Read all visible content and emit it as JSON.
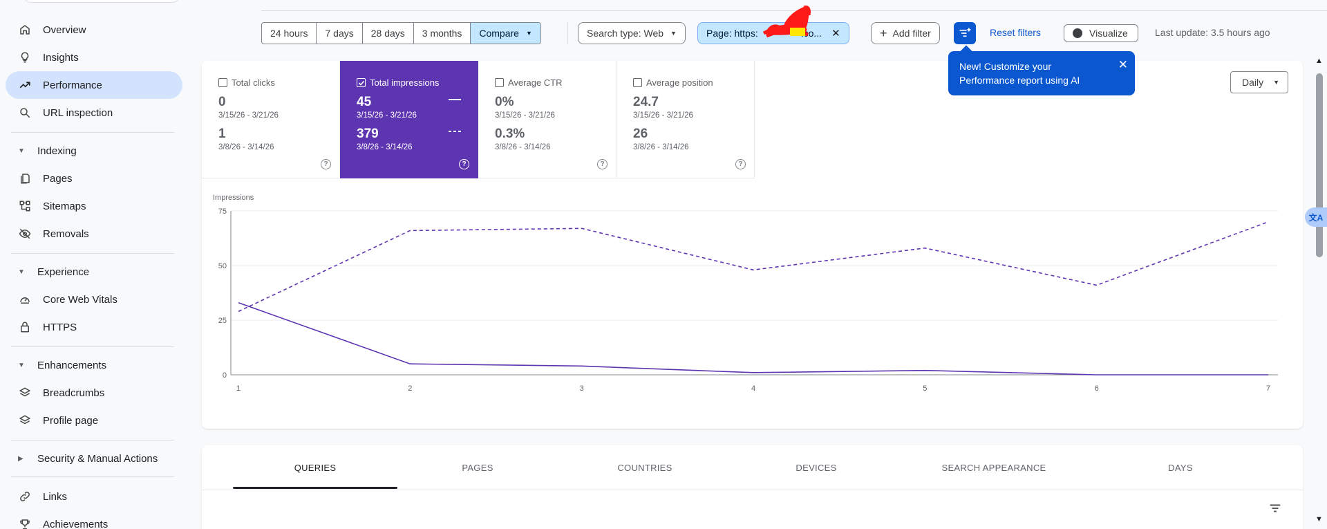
{
  "sidebar": {
    "items": {
      "overview": "Overview",
      "insights": "Insights",
      "performance": "Performance",
      "url_inspection": "URL inspection",
      "pages": "Pages",
      "sitemaps": "Sitemaps",
      "removals": "Removals",
      "core_web_vitals": "Core Web Vitals",
      "https": "HTTPS",
      "breadcrumbs": "Breadcrumbs",
      "profile_page": "Profile page",
      "links": "Links",
      "achievements": "Achievements"
    },
    "sections": {
      "indexing": "Indexing",
      "experience": "Experience",
      "enhancements": "Enhancements",
      "security": "Security & Manual Actions"
    },
    "active_item": "Performance"
  },
  "toolbar": {
    "date_ranges": [
      "24 hours",
      "7 days",
      "28 days",
      "3 months"
    ],
    "compare_label": "Compare",
    "search_type_label": "Search type: Web",
    "page_filter_label": "Page: https:",
    "page_filter_suffix": ".co...",
    "add_filter_label": "Add filter",
    "reset_filters_label": "Reset filters",
    "visualize_label": "Visualize",
    "last_update": "Last update: 3.5 hours ago"
  },
  "tooltip": {
    "text": "New! Customize your Performance report using AI"
  },
  "metrics": [
    {
      "label": "Total clicks",
      "value_current": "0",
      "range_current": "3/15/26 - 3/21/26",
      "value_previous": "1",
      "range_previous": "3/8/26 - 3/14/26",
      "checked": false
    },
    {
      "label": "Total impressions",
      "value_current": "45",
      "range_current": "3/15/26 - 3/21/26",
      "value_previous": "379",
      "range_previous": "3/8/26 - 3/14/26",
      "checked": true
    },
    {
      "label": "Average CTR",
      "value_current": "0%",
      "range_current": "3/15/26 - 3/21/26",
      "value_previous": "0.3%",
      "range_previous": "3/8/26 - 3/14/26",
      "checked": false
    },
    {
      "label": "Average position",
      "value_current": "24.7",
      "range_current": "3/15/26 - 3/21/26",
      "value_previous": "26",
      "range_previous": "3/8/26 - 3/14/26",
      "checked": false
    }
  ],
  "granularity_label": "Daily",
  "tabs": [
    "QUERIES",
    "PAGES",
    "COUNTRIES",
    "DEVICES",
    "SEARCH APPEARANCE",
    "DAYS"
  ],
  "active_tab": "QUERIES",
  "colors": {
    "accent": "#5e35b1",
    "primary_blue": "#0b57d0",
    "chip_blue": "#c2e7ff",
    "active_nav": "#d3e3fd"
  },
  "chart_data": {
    "type": "line",
    "ylabel": "Impressions",
    "xlabel": "",
    "x": [
      1,
      2,
      3,
      4,
      5,
      6,
      7
    ],
    "ylim": [
      0,
      75
    ],
    "yticks": [
      0,
      25,
      50,
      75
    ],
    "grid": true,
    "series": [
      {
        "style": "solid",
        "color": "#5e35b1",
        "values": [
          33,
          5,
          4,
          1,
          2,
          0,
          0
        ]
      },
      {
        "style": "dashed",
        "color": "#5e35b1",
        "values": [
          29,
          66,
          67,
          48,
          58,
          41,
          70
        ]
      }
    ]
  }
}
